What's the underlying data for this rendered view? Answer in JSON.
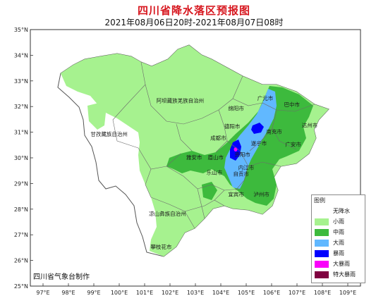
{
  "title": "四川省降水落区预报图",
  "subtitle": "2021年08月06日20时-2021年08月07日08时",
  "maker": "四川省气象台制作",
  "lat_ticks": [
    "35°N",
    "34°N",
    "33°N",
    "32°N",
    "31°N",
    "30°N",
    "29°N",
    "28°N",
    "27°N",
    "26°N",
    "25°N"
  ],
  "lon_ticks": [
    "97°E",
    "98°E",
    "99°E",
    "100°E",
    "101°E",
    "102°E",
    "103°E",
    "104°E",
    "105°E",
    "106°E",
    "107°E",
    "108°E",
    "109°E"
  ],
  "legend": {
    "title": "图例",
    "items": [
      {
        "label": "无降水",
        "color": "#ffffff"
      },
      {
        "label": "小雨",
        "color": "#a6f28f"
      },
      {
        "label": "中雨",
        "color": "#3dba3d"
      },
      {
        "label": "大雨",
        "color": "#61b8ff"
      },
      {
        "label": "暴雨",
        "color": "#0000fe"
      },
      {
        "label": "大暴雨",
        "color": "#fa00fa"
      },
      {
        "label": "特大暴雨",
        "color": "#800040"
      }
    ]
  },
  "prefectures": [
    {
      "id": "aba",
      "label": "阿坝藏族羌族自治州",
      "lon": 102.4,
      "lat": 32.15
    },
    {
      "id": "ganzi",
      "label": "甘孜藏族自治州",
      "lon": 99.6,
      "lat": 30.85
    },
    {
      "id": "liangshan",
      "label": "凉山彝族自治州",
      "lon": 101.9,
      "lat": 27.75
    },
    {
      "id": "panzhihua",
      "label": "攀枝花市",
      "lon": 101.65,
      "lat": 26.45
    },
    {
      "id": "guangyuan",
      "label": "广元市",
      "lon": 105.75,
      "lat": 32.25
    },
    {
      "id": "bazhong",
      "label": "巴中市",
      "lon": 106.8,
      "lat": 32.0
    },
    {
      "id": "mianyang",
      "label": "绵阳市",
      "lon": 104.6,
      "lat": 31.85
    },
    {
      "id": "dazhou",
      "label": "达州市",
      "lon": 107.5,
      "lat": 31.2
    },
    {
      "id": "deyang",
      "label": "德阳市",
      "lon": 104.45,
      "lat": 31.15
    },
    {
      "id": "nanchong",
      "label": "南充市",
      "lon": 106.1,
      "lat": 30.95
    },
    {
      "id": "chengdu",
      "label": "成都市",
      "lon": 103.9,
      "lat": 30.7
    },
    {
      "id": "suining",
      "label": "遂宁市",
      "lon": 105.5,
      "lat": 30.5
    },
    {
      "id": "guangan",
      "label": "广安市",
      "lon": 106.85,
      "lat": 30.45
    },
    {
      "id": "yaan",
      "label": "雅安市",
      "lon": 102.95,
      "lat": 29.95
    },
    {
      "id": "meishan",
      "label": "眉山市",
      "lon": 103.8,
      "lat": 29.95
    },
    {
      "id": "ziyang",
      "label": "资阳市",
      "lon": 104.85,
      "lat": 30.05
    },
    {
      "id": "neijiang",
      "label": "内江市",
      "lon": 105.0,
      "lat": 29.55
    },
    {
      "id": "leshan",
      "label": "乐山市",
      "lon": 103.75,
      "lat": 29.35
    },
    {
      "id": "zigong",
      "label": "自贡市",
      "lon": 104.8,
      "lat": 29.3
    },
    {
      "id": "yibin",
      "label": "宜宾市",
      "lon": 104.6,
      "lat": 28.5
    },
    {
      "id": "luzhou",
      "label": "泸州市",
      "lon": 105.6,
      "lat": 28.5
    }
  ]
}
